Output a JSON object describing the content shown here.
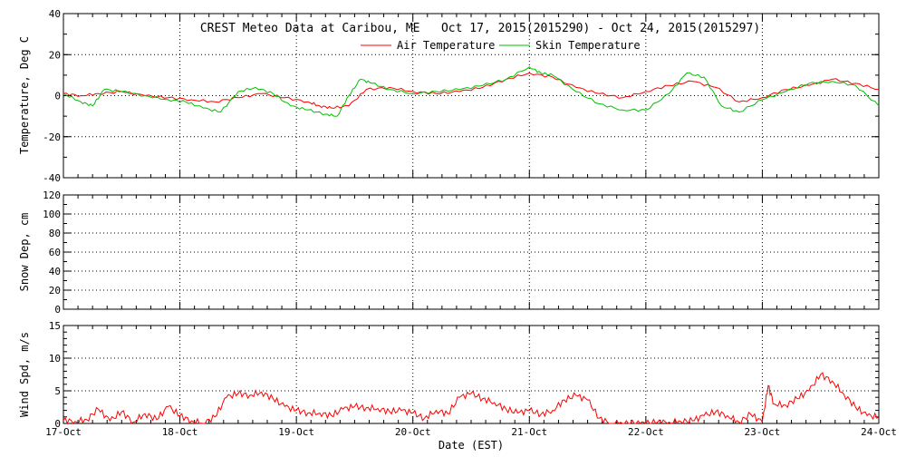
{
  "title": "CREST Meteo Data at Caribou, ME   Oct 17, 2015(2015290) - Oct 24, 2015(2015297)",
  "xlabel": "Date (EST)",
  "colors": {
    "air": "#ff0000",
    "skin": "#00c000",
    "wind": "#ff0000",
    "axis": "#000000"
  },
  "chart_data": [
    {
      "type": "line",
      "ylabel": "Temperature, Deg C",
      "ylim": [
        -40,
        40
      ],
      "yticks": [
        "-40",
        "-20",
        "0",
        "20",
        "40"
      ],
      "yticks_values": [
        -40,
        -20,
        0,
        20,
        40
      ],
      "xlim": [
        0,
        7
      ],
      "xticks": [],
      "grid": true,
      "legend": "top-center",
      "series": [
        {
          "name": "Air Temperature",
          "color": "#ff0000",
          "x": [
            0.0,
            0.15,
            0.3,
            0.5,
            0.7,
            0.9,
            1.1,
            1.3,
            1.5,
            1.7,
            1.9,
            2.1,
            2.2,
            2.3,
            2.45,
            2.6,
            2.8,
            3.0,
            3.2,
            3.4,
            3.6,
            3.8,
            4.0,
            4.2,
            4.4,
            4.6,
            4.8,
            5.0,
            5.2,
            5.4,
            5.6,
            5.8,
            6.0,
            6.2,
            6.4,
            6.6,
            6.8,
            7.0
          ],
          "y": [
            1,
            0,
            1,
            2,
            0,
            -1,
            -2,
            -3,
            -1,
            1,
            -1,
            -3,
            -5,
            -6,
            -5,
            3,
            4,
            2,
            1,
            2,
            4,
            8,
            11,
            9,
            4,
            1,
            -1,
            2,
            5,
            7,
            4,
            -3,
            -1,
            3,
            5,
            8,
            6,
            3
          ]
        },
        {
          "name": "Skin Temperature",
          "color": "#00c000",
          "x": [
            0.0,
            0.15,
            0.25,
            0.35,
            0.5,
            0.7,
            0.9,
            1.05,
            1.2,
            1.35,
            1.5,
            1.65,
            1.8,
            1.95,
            2.1,
            2.25,
            2.35,
            2.45,
            2.55,
            2.65,
            2.8,
            3.0,
            3.2,
            3.4,
            3.6,
            3.8,
            4.0,
            4.1,
            4.2,
            4.4,
            4.6,
            4.8,
            5.0,
            5.2,
            5.35,
            5.5,
            5.65,
            5.8,
            6.0,
            6.2,
            6.4,
            6.6,
            6.8,
            7.0
          ],
          "y": [
            1,
            -3,
            -5,
            3,
            2,
            0,
            -2,
            -3,
            -6,
            -8,
            2,
            4,
            1,
            -5,
            -7,
            -9,
            -10,
            0,
            8,
            6,
            3,
            1,
            2,
            3,
            5,
            8,
            14,
            11,
            10,
            2,
            -4,
            -7,
            -7,
            1,
            11,
            9,
            -5,
            -8,
            -2,
            2,
            6,
            7,
            5,
            -5
          ]
        }
      ]
    },
    {
      "type": "line",
      "ylabel": "Snow Dep, cm",
      "ylim": [
        0,
        120
      ],
      "yticks": [
        "0",
        "20",
        "40",
        "60",
        "80",
        "100",
        "120"
      ],
      "yticks_values": [
        0,
        20,
        40,
        60,
        80,
        100,
        120
      ],
      "xlim": [
        0,
        7
      ],
      "xticks": [],
      "grid": true,
      "series": []
    },
    {
      "type": "line",
      "ylabel": "Wind Spd, m/s",
      "ylim": [
        0,
        15
      ],
      "yticks": [
        "0",
        "5",
        "10",
        "15"
      ],
      "yticks_values": [
        0,
        5,
        10,
        15
      ],
      "xlim": [
        0,
        7
      ],
      "xticks": [
        "17-Oct",
        "18-Oct",
        "19-Oct",
        "20-Oct",
        "21-Oct",
        "22-Oct",
        "23-Oct",
        "24-Oct"
      ],
      "xticks_values": [
        0,
        1,
        2,
        3,
        4,
        5,
        6,
        7
      ],
      "grid": true,
      "series": [
        {
          "color": "#ff0000",
          "x": [
            0.0,
            0.1,
            0.2,
            0.3,
            0.4,
            0.5,
            0.6,
            0.7,
            0.8,
            0.9,
            1.0,
            1.1,
            1.2,
            1.3,
            1.4,
            1.5,
            1.6,
            1.7,
            1.8,
            1.9,
            2.0,
            2.1,
            2.2,
            2.3,
            2.4,
            2.5,
            2.6,
            2.7,
            2.8,
            2.9,
            3.0,
            3.1,
            3.2,
            3.3,
            3.4,
            3.5,
            3.6,
            3.7,
            3.8,
            3.9,
            4.0,
            4.1,
            4.2,
            4.3,
            4.4,
            4.5,
            4.6,
            4.7,
            4.8,
            4.9,
            5.0,
            5.1,
            5.2,
            5.3,
            5.4,
            5.5,
            5.6,
            5.7,
            5.8,
            5.9,
            6.0,
            6.05,
            6.1,
            6.2,
            6.3,
            6.4,
            6.5,
            6.6,
            6.7,
            6.8,
            6.9,
            7.0
          ],
          "y": [
            0.5,
            0.3,
            0.6,
            2.2,
            0.4,
            1.8,
            0.2,
            1.5,
            0.6,
            2.6,
            1.2,
            0.4,
            0.0,
            1.0,
            4.0,
            4.6,
            4.3,
            4.8,
            3.8,
            2.6,
            2.0,
            1.6,
            1.6,
            1.2,
            2.2,
            2.6,
            2.4,
            2.3,
            1.8,
            2.0,
            1.6,
            0.8,
            2.0,
            1.5,
            4.0,
            4.6,
            3.8,
            3.2,
            2.2,
            1.6,
            2.0,
            1.4,
            2.0,
            3.6,
            4.3,
            3.6,
            0.8,
            0.0,
            0.0,
            0.0,
            0.0,
            0.2,
            0.2,
            0.3,
            0.4,
            1.2,
            1.8,
            1.2,
            0.2,
            1.4,
            0.2,
            5.8,
            3.0,
            2.8,
            3.8,
            5.0,
            7.5,
            6.5,
            4.5,
            2.5,
            1.2,
            1.0
          ]
        }
      ]
    }
  ]
}
